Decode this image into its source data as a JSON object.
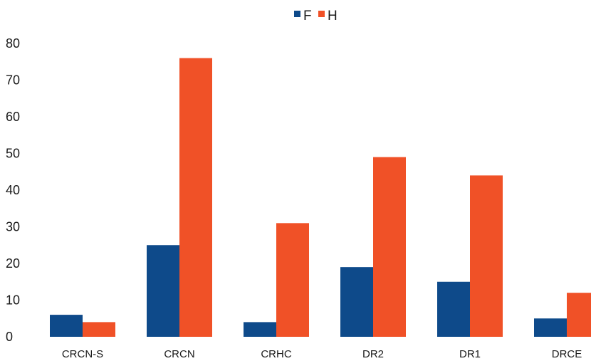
{
  "chart_data": {
    "type": "bar",
    "title": "",
    "xlabel": "",
    "ylabel": "",
    "categories": [
      "CRCN-S",
      "CRCN",
      "CRHC",
      "DR2",
      "DR1",
      "DRCE"
    ],
    "series": [
      {
        "name": "F",
        "values": [
          6,
          25,
          4,
          19,
          15,
          5
        ],
        "color": "#0e4a8a"
      },
      {
        "name": "H",
        "values": [
          4,
          76,
          31,
          49,
          44,
          12
        ],
        "color": "#f05127"
      }
    ],
    "ylim": [
      0,
      80
    ],
    "yticks": [
      0,
      10,
      20,
      30,
      40,
      50,
      60,
      70,
      80
    ],
    "grid": false,
    "legend_position": "top-center"
  }
}
